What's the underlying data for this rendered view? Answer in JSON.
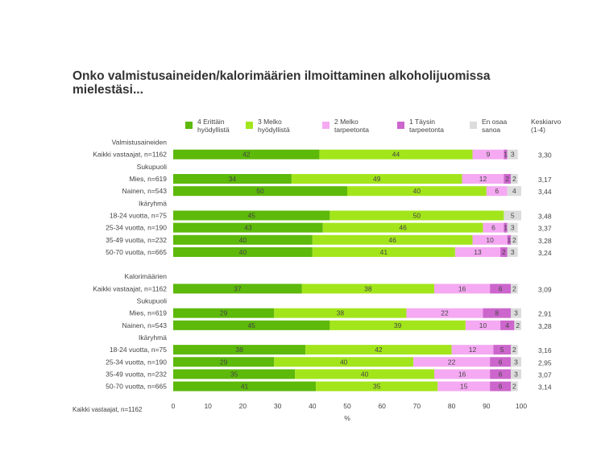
{
  "title": "Onko valmistusaineiden/kalorimäärien ilmoittaminen alkoholijuomissa mielestäsi...",
  "legend": [
    {
      "label": "4 Erittäin\nhyödyllistä",
      "color": "#5db90a"
    },
    {
      "label": "3 Melko\nhyödyllistä",
      "color": "#a3e51b"
    },
    {
      "label": "2 Melko\ntarpeetonta",
      "color": "#f5a9f2"
    },
    {
      "label": "1 Täysin\ntarpeetonta",
      "color": "#cc66cc"
    },
    {
      "label": "En osaa\nsanoa",
      "color": "#dcdcdc"
    }
  ],
  "mean_header": "Keskiarvo\n(1-4)",
  "x_axis": {
    "label": "%",
    "ticks": [
      "0",
      "10",
      "20",
      "30",
      "40",
      "50",
      "60",
      "70",
      "80",
      "90",
      "100"
    ]
  },
  "footnote": "Kaikki vastaajat, n=1162",
  "chart_data": {
    "type": "bar",
    "stacked": true,
    "orientation": "horizontal",
    "xlabel": "%",
    "xlim": [
      0,
      100
    ],
    "series_names": [
      "4 Erittäin hyödyllistä",
      "3 Melko hyödyllistä",
      "2 Melko tarpeetonta",
      "1 Täysin tarpeetonta",
      "En osaa sanoa"
    ],
    "rows": [
      {
        "label": "Valmistusaineiden",
        "kind": "header"
      },
      {
        "label": "Kaikki vastaajat, n=1162",
        "values": [
          42,
          44,
          9,
          1,
          3
        ],
        "mean": "3,30"
      },
      {
        "label": "Sukupuoli",
        "kind": "header"
      },
      {
        "label": "Mies, n=619",
        "values": [
          34,
          49,
          12,
          2,
          2
        ],
        "mean": "3,17"
      },
      {
        "label": "Nainen, n=543",
        "values": [
          50,
          40,
          6,
          0,
          4
        ],
        "mean": "3,44"
      },
      {
        "label": "Ikäryhmä",
        "kind": "header"
      },
      {
        "label": "18-24 vuotta, n=75",
        "values": [
          45,
          50,
          0,
          0,
          5
        ],
        "mean": "3,48"
      },
      {
        "label": "25-34 vuotta, n=190",
        "values": [
          43,
          46,
          6,
          1,
          3
        ],
        "mean": "3,37"
      },
      {
        "label": "35-49 vuotta, n=232",
        "values": [
          40,
          46,
          10,
          1,
          2
        ],
        "mean": "3,28"
      },
      {
        "label": "50-70 vuotta, n=665",
        "values": [
          40,
          41,
          13,
          2,
          3
        ],
        "mean": "3,24"
      },
      {
        "label": "",
        "kind": "spacer"
      },
      {
        "label": "Kalorimäärien",
        "kind": "header"
      },
      {
        "label": "Kaikki vastaajat, n=1162",
        "values": [
          37,
          38,
          16,
          6,
          2
        ],
        "mean": "3,09"
      },
      {
        "label": "Sukupuoli",
        "kind": "header"
      },
      {
        "label": "Mies, n=619",
        "values": [
          29,
          38,
          22,
          8,
          3
        ],
        "mean": "2,91"
      },
      {
        "label": "Nainen, n=543",
        "values": [
          45,
          39,
          10,
          4,
          2
        ],
        "mean": "3,28"
      },
      {
        "label": "Ikäryhmä",
        "kind": "header"
      },
      {
        "label": "18-24 vuotta, n=75",
        "values": [
          38,
          42,
          12,
          5,
          2
        ],
        "mean": "3,16"
      },
      {
        "label": "25-34 vuotta, n=190",
        "values": [
          29,
          40,
          22,
          6,
          3
        ],
        "mean": "2,95"
      },
      {
        "label": "35-49 vuotta, n=232",
        "values": [
          35,
          40,
          16,
          6,
          3
        ],
        "mean": "3,07"
      },
      {
        "label": "50-70 vuotta, n=665",
        "values": [
          41,
          35,
          15,
          6,
          2
        ],
        "mean": "3,14"
      }
    ]
  }
}
